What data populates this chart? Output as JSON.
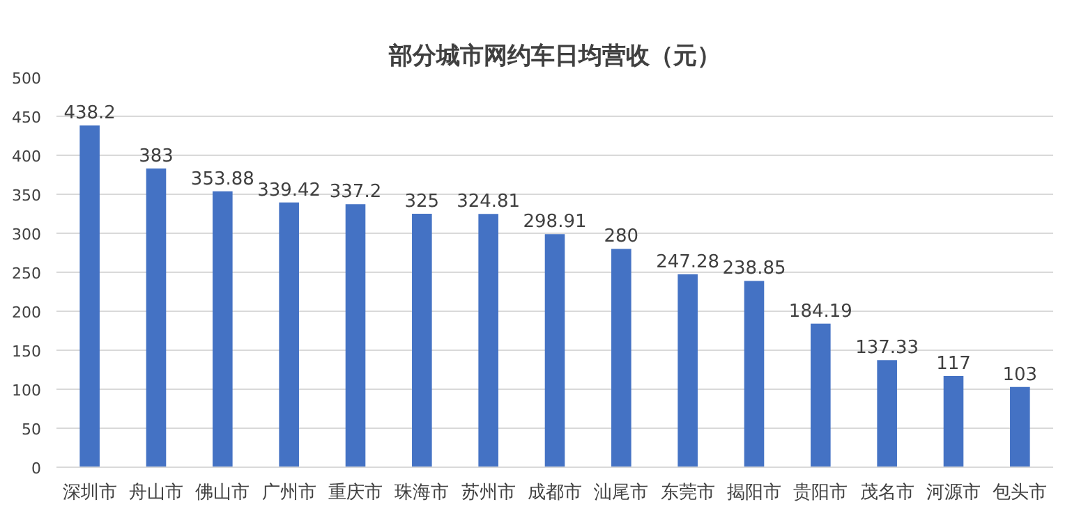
{
  "chart_data": {
    "type": "bar",
    "title": "部分城市网约车日均营收（元）",
    "categories": [
      "深圳市",
      "舟山市",
      "佛山市",
      "广州市",
      "重庆市",
      "珠海市",
      "苏州市",
      "成都市",
      "汕尾市",
      "东莞市",
      "揭阳市",
      "贵阳市",
      "茂名市",
      "河源市",
      "包头市"
    ],
    "values": [
      438.2,
      383,
      353.88,
      339.42,
      337.2,
      325,
      324.81,
      298.91,
      280,
      247.28,
      238.85,
      184.19,
      137.33,
      117,
      103
    ],
    "color": "#4472c4",
    "ylim": [
      0,
      500
    ],
    "yticks": [
      0,
      50,
      100,
      150,
      200,
      250,
      300,
      350,
      400,
      450,
      500
    ],
    "grid": "y",
    "data_labels": true
  }
}
